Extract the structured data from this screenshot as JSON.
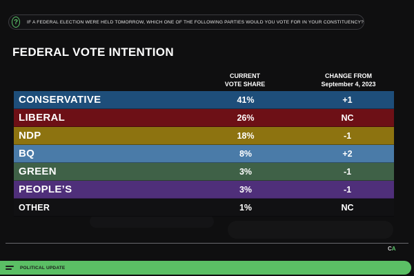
{
  "question": "IF A FEDERAL ELECTION WERE HELD TOMORROW, WHICH ONE OF THE FOLLOWING PARTIES WOULD YOU VOTE FOR IN YOUR CONSTITUENCY?",
  "title": "FEDERAL VOTE INTENTION",
  "columns": {
    "share_line1": "CURRENT",
    "share_line2": "VOTE SHARE",
    "change_line1": "CHANGE FROM",
    "change_line2": "September 4, 2023"
  },
  "logo": {
    "main": "C",
    "accent": "A"
  },
  "footer": {
    "label": "POLITICAL UPDATE"
  },
  "colors": {
    "accent": "#5bbf65",
    "conservative": "#1e4e7a",
    "liberal": "#6d1016",
    "ndp": "#8d7310",
    "bq": "#4a7ba8",
    "green": "#3f6147",
    "peoples": "#4f2f7a",
    "other": "#111113"
  },
  "chart_data": {
    "type": "table",
    "title": "FEDERAL VOTE INTENTION",
    "columns": [
      "CURRENT VOTE SHARE",
      "CHANGE FROM September 4, 2023"
    ],
    "rows": [
      {
        "party": "CONSERVATIVE",
        "share": "41%",
        "change": "+1",
        "color": "#1e4e7a"
      },
      {
        "party": "LIBERAL",
        "share": "26%",
        "change": "NC",
        "color": "#6d1016"
      },
      {
        "party": "NDP",
        "share": "18%",
        "change": "-1",
        "color": "#8d7310"
      },
      {
        "party": "BQ",
        "share": "8%",
        "change": "+2",
        "color": "#4a7ba8"
      },
      {
        "party": "GREEN",
        "share": "3%",
        "change": "-1",
        "color": "#3f6147"
      },
      {
        "party": "PEOPLE’S",
        "share": "3%",
        "change": "-1",
        "color": "#4f2f7a"
      },
      {
        "party": "OTHER",
        "share": "1%",
        "change": "NC",
        "color": "#111113"
      }
    ]
  }
}
